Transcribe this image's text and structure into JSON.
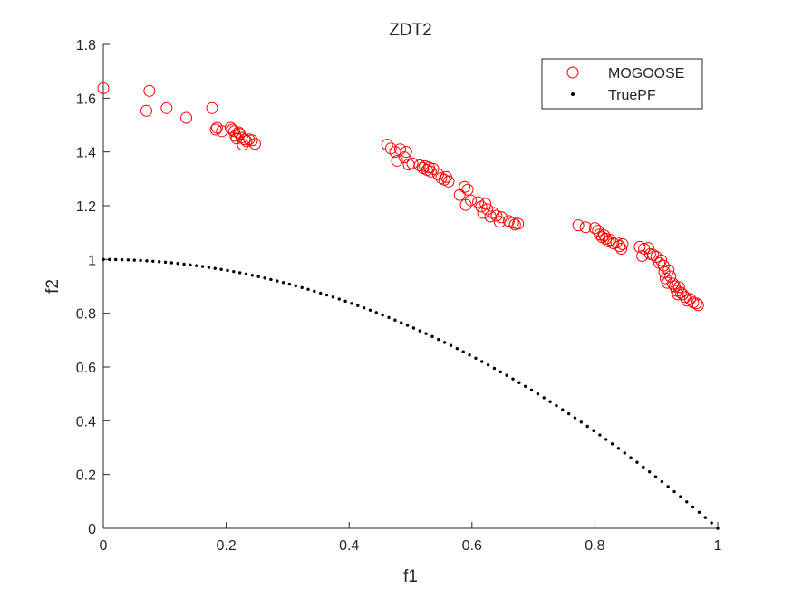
{
  "chart_data": {
    "type": "scatter",
    "title": "ZDT2",
    "xlabel": "f1",
    "ylabel": "f2",
    "xlim": [
      0,
      1
    ],
    "ylim": [
      0,
      1.8
    ],
    "xticks": [
      0,
      0.2,
      0.4,
      0.6,
      0.8,
      1
    ],
    "yticks": [
      0,
      0.2,
      0.4,
      0.6,
      0.8,
      1,
      1.2,
      1.4,
      1.6,
      1.8
    ],
    "xtick_labels": [
      "0",
      "0.2",
      "0.4",
      "0.6",
      "0.8",
      "1"
    ],
    "ytick_labels": [
      "0",
      "0.2",
      "0.4",
      "0.6",
      "0.8",
      "1",
      "1.2",
      "1.4",
      "1.6",
      "1.8"
    ],
    "grid": false,
    "legend_position": "top-right",
    "series": [
      {
        "name": "MOGOOSE",
        "marker": "open-circle",
        "color": "#ff0000",
        "points": [
          [
            0.0,
            1.637
          ],
          [
            0.07,
            1.553
          ],
          [
            0.075,
            1.627
          ],
          [
            0.103,
            1.563
          ],
          [
            0.135,
            1.527
          ],
          [
            0.177,
            1.563
          ],
          [
            0.183,
            1.483
          ],
          [
            0.185,
            1.49
          ],
          [
            0.193,
            1.477
          ],
          [
            0.207,
            1.49
          ],
          [
            0.21,
            1.483
          ],
          [
            0.213,
            1.477
          ],
          [
            0.215,
            1.46
          ],
          [
            0.217,
            1.45
          ],
          [
            0.22,
            1.473
          ],
          [
            0.222,
            1.467
          ],
          [
            0.225,
            1.453
          ],
          [
            0.227,
            1.427
          ],
          [
            0.23,
            1.447
          ],
          [
            0.233,
            1.44
          ],
          [
            0.237,
            1.447
          ],
          [
            0.242,
            1.443
          ],
          [
            0.247,
            1.43
          ],
          [
            0.462,
            1.427
          ],
          [
            0.468,
            1.413
          ],
          [
            0.475,
            1.4
          ],
          [
            0.478,
            1.367
          ],
          [
            0.483,
            1.41
          ],
          [
            0.49,
            1.38
          ],
          [
            0.493,
            1.4
          ],
          [
            0.497,
            1.353
          ],
          [
            0.503,
            1.357
          ],
          [
            0.515,
            1.35
          ],
          [
            0.52,
            1.34
          ],
          [
            0.523,
            1.347
          ],
          [
            0.527,
            1.333
          ],
          [
            0.53,
            1.343
          ],
          [
            0.533,
            1.327
          ],
          [
            0.537,
            1.337
          ],
          [
            0.545,
            1.317
          ],
          [
            0.55,
            1.303
          ],
          [
            0.555,
            1.297
          ],
          [
            0.558,
            1.307
          ],
          [
            0.562,
            1.29
          ],
          [
            0.58,
            1.24
          ],
          [
            0.588,
            1.27
          ],
          [
            0.59,
            1.203
          ],
          [
            0.593,
            1.26
          ],
          [
            0.598,
            1.22
          ],
          [
            0.61,
            1.213
          ],
          [
            0.615,
            1.197
          ],
          [
            0.618,
            1.173
          ],
          [
            0.622,
            1.207
          ],
          [
            0.625,
            1.187
          ],
          [
            0.63,
            1.16
          ],
          [
            0.635,
            1.173
          ],
          [
            0.64,
            1.163
          ],
          [
            0.645,
            1.14
          ],
          [
            0.648,
            1.157
          ],
          [
            0.66,
            1.143
          ],
          [
            0.667,
            1.137
          ],
          [
            0.67,
            1.13
          ],
          [
            0.675,
            1.133
          ],
          [
            0.773,
            1.127
          ],
          [
            0.785,
            1.12
          ],
          [
            0.8,
            1.117
          ],
          [
            0.805,
            1.107
          ],
          [
            0.808,
            1.093
          ],
          [
            0.812,
            1.083
          ],
          [
            0.815,
            1.09
          ],
          [
            0.818,
            1.077
          ],
          [
            0.822,
            1.067
          ],
          [
            0.825,
            1.073
          ],
          [
            0.83,
            1.06
          ],
          [
            0.835,
            1.063
          ],
          [
            0.84,
            1.05
          ],
          [
            0.843,
            1.04
          ],
          [
            0.845,
            1.057
          ],
          [
            0.873,
            1.047
          ],
          [
            0.877,
            1.013
          ],
          [
            0.88,
            1.04
          ],
          [
            0.887,
            1.043
          ],
          [
            0.89,
            1.02
          ],
          [
            0.895,
            1.017
          ],
          [
            0.9,
            1.01
          ],
          [
            0.905,
            0.987
          ],
          [
            0.908,
            0.997
          ],
          [
            0.912,
            0.977
          ],
          [
            0.913,
            0.953
          ],
          [
            0.915,
            0.93
          ],
          [
            0.918,
            0.913
          ],
          [
            0.92,
            0.96
          ],
          [
            0.923,
            0.937
          ],
          [
            0.927,
            0.91
          ],
          [
            0.93,
            0.9
          ],
          [
            0.933,
            0.883
          ],
          [
            0.935,
            0.87
          ],
          [
            0.937,
            0.897
          ],
          [
            0.94,
            0.877
          ],
          [
            0.943,
            0.87
          ],
          [
            0.947,
            0.86
          ],
          [
            0.95,
            0.847
          ],
          [
            0.955,
            0.853
          ],
          [
            0.96,
            0.84
          ],
          [
            0.965,
            0.837
          ],
          [
            0.968,
            0.83
          ]
        ]
      },
      {
        "name": "TruePF",
        "marker": "dot",
        "color": "#000000",
        "function": "f2 = 1 - f1^2",
        "x_range": [
          0,
          1
        ],
        "point_count": 100
      }
    ]
  }
}
